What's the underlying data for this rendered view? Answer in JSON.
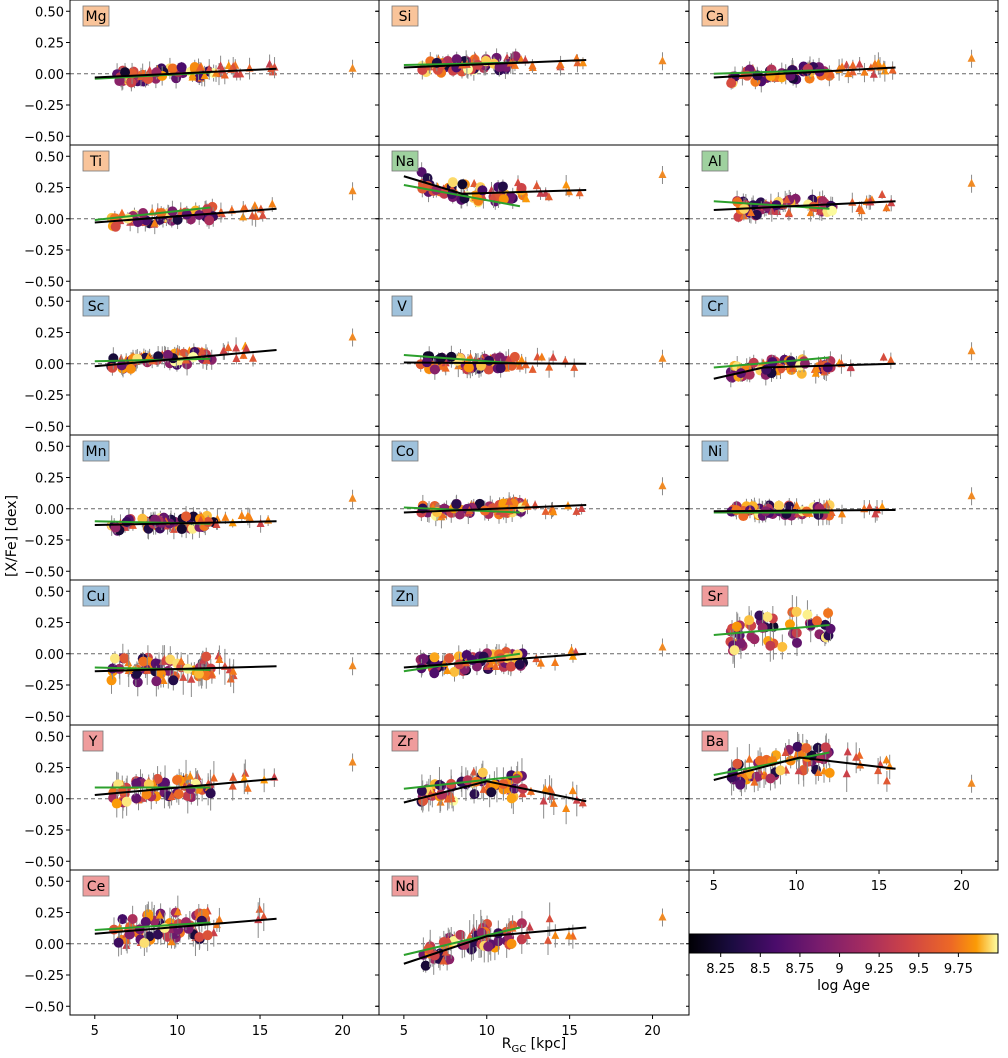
{
  "chart_data": {
    "type": "scatter",
    "ylabel": "[X/Fe] [dex]",
    "xlabel": "R",
    "xlabel_sub": "GC",
    "xlabel_unit": " [kpc]",
    "xlim": [
      3.5,
      22.2
    ],
    "ylim": [
      -0.57,
      0.59
    ],
    "xticks": [
      5,
      10,
      15,
      20
    ],
    "yticks": [
      0.5,
      0.25,
      0.0,
      -0.25,
      -0.5
    ],
    "ytick_labels": [
      "0.50",
      "0.25",
      "0.00",
      "−0.25",
      "−0.50"
    ],
    "reference_line": 0.0,
    "grid": false,
    "colorbar": {
      "label": "log Age",
      "range": [
        8.05,
        10.0
      ],
      "ticks": [
        8.25,
        8.5,
        8.75,
        9,
        9.25,
        9.5,
        9.75
      ],
      "tick_labels": [
        "8.25",
        "8.5",
        "8.75",
        "9",
        "9.25",
        "9.5",
        "9.75"
      ],
      "colormap": "inferno"
    },
    "group_colors": {
      "alpha": "#f9c49a",
      "odd": "#9fd19f",
      "iron": "#9fc2dc",
      "neutron": "#ef9c9c"
    },
    "fit_colors": {
      "all": "#000000",
      "young": "#2ca02c"
    },
    "panels": [
      {
        "element": "Mg",
        "group": "alpha",
        "level": 0.0,
        "scatter": 0.05,
        "outlier": 0.04,
        "fit_all": [
          [
            5.0,
            -0.03
          ],
          [
            16.0,
            0.04
          ]
        ],
        "fit_young": [
          [
            5.0,
            -0.04
          ],
          [
            12.0,
            0.01
          ]
        ]
      },
      {
        "element": "Si",
        "group": "alpha",
        "level": 0.07,
        "scatter": 0.05,
        "outlier": 0.1,
        "fit_all": [
          [
            5.0,
            0.05
          ],
          [
            16.0,
            0.11
          ]
        ],
        "fit_young": [
          [
            5.0,
            0.07
          ],
          [
            12.0,
            0.09
          ]
        ]
      },
      {
        "element": "Ca",
        "group": "alpha",
        "level": 0.0,
        "scatter": 0.05,
        "outlier": 0.12,
        "fit_all": [
          [
            5.0,
            -0.03
          ],
          [
            16.0,
            0.05
          ]
        ],
        "fit_young": [
          [
            5.0,
            0.0
          ],
          [
            12.0,
            0.03
          ]
        ]
      },
      {
        "element": "Ti",
        "group": "alpha",
        "level": 0.06,
        "scatter": 0.05,
        "outlier": 0.22,
        "fit_all": [
          [
            5.0,
            -0.03
          ],
          [
            16.0,
            0.08
          ]
        ],
        "fit_young": [
          [
            5.0,
            -0.01
          ],
          [
            12.0,
            0.09
          ]
        ]
      },
      {
        "element": "Na",
        "group": "odd",
        "level": 0.2,
        "scatter": 0.07,
        "outlier": 0.35,
        "fit_all": [
          [
            5.0,
            0.34
          ],
          [
            8.5,
            0.2
          ],
          [
            16.0,
            0.23
          ]
        ],
        "fit_young": [
          [
            5.0,
            0.27
          ],
          [
            12.0,
            0.1
          ]
        ]
      },
      {
        "element": "Al",
        "group": "odd",
        "level": 0.1,
        "scatter": 0.06,
        "outlier": 0.28,
        "fit_all": [
          [
            5.0,
            0.07
          ],
          [
            16.0,
            0.14
          ]
        ],
        "fit_young": [
          [
            5.0,
            0.14
          ],
          [
            12.0,
            0.08
          ]
        ]
      },
      {
        "element": "Sc",
        "group": "iron",
        "level": 0.02,
        "scatter": 0.05,
        "outlier": 0.21,
        "fit_all": [
          [
            5.0,
            -0.02
          ],
          [
            16.0,
            0.11
          ]
        ],
        "fit_young": [
          [
            5.0,
            0.02
          ],
          [
            12.0,
            0.04
          ]
        ]
      },
      {
        "element": "V",
        "group": "iron",
        "level": 0.01,
        "scatter": 0.05,
        "outlier": 0.04,
        "fit_all": [
          [
            5.0,
            0.01
          ],
          [
            16.0,
            0.0
          ]
        ],
        "fit_young": [
          [
            5.0,
            0.07
          ],
          [
            12.0,
            0.0
          ]
        ]
      },
      {
        "element": "Cr",
        "group": "iron",
        "level": 0.0,
        "scatter": 0.06,
        "outlier": 0.1,
        "fit_all": [
          [
            5.0,
            -0.12
          ],
          [
            8.0,
            -0.03
          ],
          [
            16.0,
            0.0
          ]
        ],
        "fit_young": [
          [
            5.0,
            -0.03
          ],
          [
            12.0,
            0.05
          ]
        ]
      },
      {
        "element": "Mn",
        "group": "iron",
        "level": -0.12,
        "scatter": 0.05,
        "outlier": 0.08,
        "fit_all": [
          [
            5.0,
            -0.13
          ],
          [
            16.0,
            -0.1
          ]
        ],
        "fit_young": [
          [
            5.0,
            -0.1
          ],
          [
            12.0,
            -0.12
          ]
        ]
      },
      {
        "element": "Co",
        "group": "iron",
        "level": -0.01,
        "scatter": 0.05,
        "outlier": 0.18,
        "fit_all": [
          [
            5.0,
            -0.03
          ],
          [
            16.0,
            0.03
          ]
        ],
        "fit_young": [
          [
            5.0,
            0.01
          ],
          [
            12.0,
            -0.03
          ]
        ]
      },
      {
        "element": "Ni",
        "group": "iron",
        "level": -0.03,
        "scatter": 0.04,
        "outlier": 0.1,
        "fit_all": [
          [
            5.0,
            -0.02
          ],
          [
            16.0,
            -0.01
          ]
        ],
        "fit_young": [
          [
            5.0,
            -0.03
          ],
          [
            12.0,
            -0.03
          ]
        ]
      },
      {
        "element": "Cu",
        "group": "iron",
        "level": -0.12,
        "scatter": 0.09,
        "outlier": -0.1,
        "fit_all": [
          [
            5.0,
            -0.14
          ],
          [
            16.0,
            -0.1
          ]
        ],
        "fit_young": [
          [
            5.0,
            -0.11
          ],
          [
            12.0,
            -0.13
          ]
        ]
      },
      {
        "element": "Zn",
        "group": "iron",
        "level": -0.06,
        "scatter": 0.06,
        "outlier": 0.05,
        "fit_all": [
          [
            5.0,
            -0.11
          ],
          [
            16.0,
            0.0
          ]
        ],
        "fit_young": [
          [
            5.0,
            -0.14
          ],
          [
            12.0,
            0.0
          ]
        ]
      },
      {
        "element": "Sr",
        "group": "neutron",
        "level": 0.2,
        "scatter": 0.13,
        "outlier": null,
        "fit_all": [],
        "fit_young": [
          [
            5.0,
            0.15
          ],
          [
            12.0,
            0.23
          ]
        ]
      },
      {
        "element": "Y",
        "group": "neutron",
        "level": 0.08,
        "scatter": 0.08,
        "outlier": 0.29,
        "fit_all": [
          [
            5.0,
            0.03
          ],
          [
            16.0,
            0.16
          ]
        ],
        "fit_young": [
          [
            5.0,
            0.09
          ],
          [
            12.0,
            0.09
          ]
        ]
      },
      {
        "element": "Zr",
        "group": "neutron",
        "level": 0.08,
        "scatter": 0.09,
        "outlier": null,
        "fit_all": [
          [
            5.0,
            -0.03
          ],
          [
            10.0,
            0.14
          ],
          [
            16.0,
            -0.02
          ]
        ],
        "fit_young": [
          [
            5.0,
            0.08
          ],
          [
            12.0,
            0.18
          ]
        ]
      },
      {
        "element": "Ba",
        "group": "neutron",
        "level": 0.22,
        "scatter": 0.1,
        "outlier": 0.12,
        "fit_all": [
          [
            5.0,
            0.15
          ],
          [
            10.2,
            0.33
          ],
          [
            16.0,
            0.24
          ]
        ],
        "fit_young": [
          [
            5.0,
            0.19
          ],
          [
            12.0,
            0.37
          ]
        ]
      },
      {
        "element": "Ce",
        "group": "neutron",
        "level": 0.15,
        "scatter": 0.11,
        "outlier": null,
        "fit_all": [
          [
            5.0,
            0.08
          ],
          [
            16.0,
            0.2
          ]
        ],
        "fit_young": [
          [
            5.0,
            0.11
          ],
          [
            12.0,
            0.17
          ]
        ]
      },
      {
        "element": "Nd",
        "group": "neutron",
        "level": 0.0,
        "scatter": 0.09,
        "outlier": 0.21,
        "fit_all": [
          [
            5.0,
            -0.16
          ],
          [
            10.0,
            0.06
          ],
          [
            16.0,
            0.13
          ]
        ],
        "fit_young": [
          [
            5.0,
            -0.09
          ],
          [
            12.0,
            0.13
          ]
        ]
      }
    ]
  }
}
